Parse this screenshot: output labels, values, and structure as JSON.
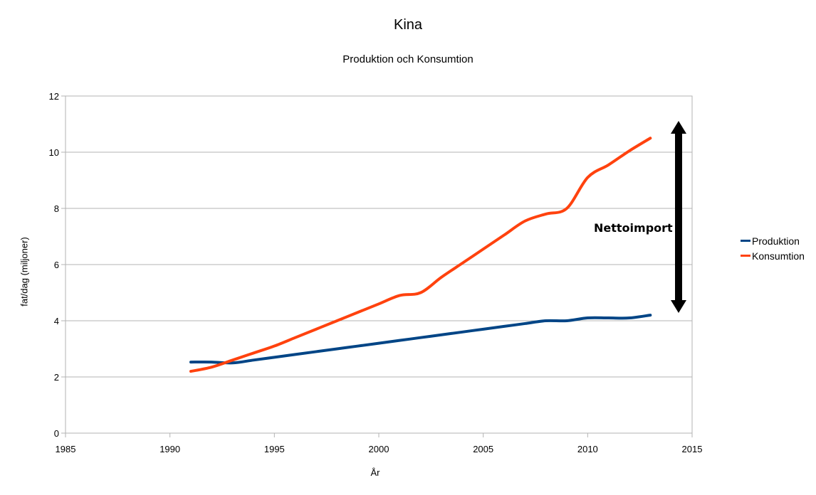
{
  "chart_data": {
    "type": "line",
    "title": "Kina",
    "subtitle": "Produktion och Konsumtion",
    "xlabel": "År",
    "ylabel": "fat/dag (miljoner)",
    "xlim": [
      1985,
      2015
    ],
    "ylim": [
      0,
      12
    ],
    "xticks": [
      1985,
      1990,
      1995,
      2000,
      2005,
      2010,
      2015
    ],
    "yticks": [
      0,
      2,
      4,
      6,
      8,
      10,
      12
    ],
    "grid": "horizontal",
    "legend_position": "right",
    "annotation": "Nettoimport",
    "series": [
      {
        "name": "Produktion",
        "color": "#004586",
        "x": [
          1991,
          1992,
          1993,
          1994,
          1995,
          1996,
          1997,
          1998,
          1999,
          2000,
          2001,
          2002,
          2003,
          2004,
          2005,
          2006,
          2007,
          2008,
          2009,
          2010,
          2011,
          2012,
          2013
        ],
        "y": [
          2.53,
          2.53,
          2.5,
          2.6,
          2.7,
          2.8,
          2.9,
          3.0,
          3.1,
          3.2,
          3.3,
          3.4,
          3.5,
          3.6,
          3.7,
          3.8,
          3.9,
          4.0,
          4.0,
          4.1,
          4.1,
          4.1,
          4.2
        ]
      },
      {
        "name": "Konsumtion",
        "color": "#ff420e",
        "x": [
          1991,
          1992,
          1993,
          1994,
          1995,
          1996,
          1997,
          1998,
          1999,
          2000,
          2001,
          2002,
          2003,
          2004,
          2005,
          2006,
          2007,
          2008,
          2009,
          2010,
          2011,
          2012,
          2013
        ],
        "y": [
          2.2,
          2.35,
          2.6,
          2.85,
          3.1,
          3.4,
          3.7,
          4.0,
          4.3,
          4.6,
          4.9,
          5.0,
          5.55,
          6.05,
          6.55,
          7.05,
          7.55,
          7.8,
          8.0,
          9.1,
          9.55,
          10.05,
          10.5
        ]
      }
    ]
  }
}
